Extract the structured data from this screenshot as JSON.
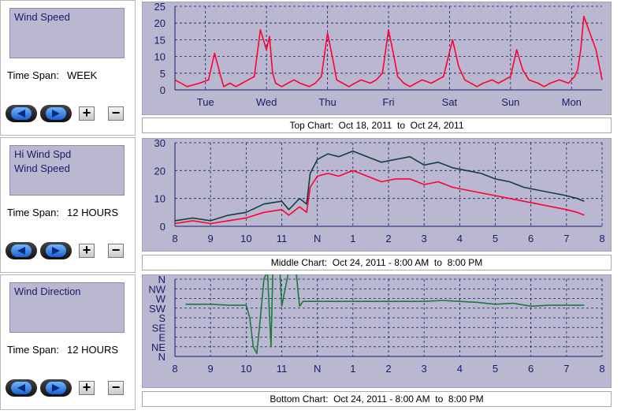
{
  "panels": [
    {
      "series_labels": [
        "Wind Speed"
      ],
      "time_span_label": "Time Span:",
      "time_span_value": "WEEK",
      "zoom_in": "+",
      "zoom_out": "−",
      "caption": "Top Chart:  Oct 18, 2011  to  Oct 24, 2011"
    },
    {
      "series_labels": [
        "Hi Wind Spd",
        "Wind Speed"
      ],
      "time_span_label": "Time Span:",
      "time_span_value": "12 HOURS",
      "zoom_in": "+",
      "zoom_out": "−",
      "caption": "Middle Chart:  Oct 24, 2011 - 8:00 AM  to  8:00 PM"
    },
    {
      "series_labels": [
        "Wind Direction"
      ],
      "time_span_label": "Time Span:",
      "time_span_value": "12 HOURS",
      "zoom_in": "+",
      "zoom_out": "−",
      "caption": "Bottom Chart:  Oct 24, 2011 - 8:00 AM  to  8:00 PM"
    }
  ],
  "colors": {
    "plot_bg": "#b9b8d0",
    "grid": "#1a1a66",
    "wind_speed": "#ff0033",
    "hi_wind": "#10403a",
    "direction": "#1e7a3a",
    "tick_text": "#1a1a66"
  },
  "chart_data": [
    {
      "type": "line",
      "ylim": [
        0,
        25
      ],
      "yticks": [
        0,
        5,
        10,
        15,
        20,
        25
      ],
      "x_tick_labels": [
        "Tue",
        "Wed",
        "Thu",
        "Fri",
        "Sat",
        "Sun",
        "Mon"
      ],
      "xlim": [
        0,
        7
      ],
      "series": [
        {
          "name": "Wind Speed",
          "x": [
            0,
            0.2,
            0.4,
            0.55,
            0.65,
            0.75,
            0.8,
            0.9,
            1.0,
            1.1,
            1.2,
            1.3,
            1.4,
            1.5,
            1.55,
            1.6,
            1.65,
            1.75,
            1.85,
            1.95,
            2.05,
            2.2,
            2.3,
            2.4,
            2.5,
            2.6,
            2.65,
            2.75,
            2.85,
            2.95,
            3.05,
            3.2,
            3.3,
            3.4,
            3.5,
            3.6,
            3.65,
            3.75,
            3.85,
            3.95,
            4.05,
            4.2,
            4.3,
            4.4,
            4.55,
            4.65,
            4.75,
            4.85,
            4.95,
            5.05,
            5.2,
            5.3,
            5.4,
            5.5,
            5.6,
            5.7,
            5.8,
            5.95,
            6.05,
            6.15,
            6.3,
            6.45,
            6.55,
            6.6,
            6.65,
            6.7,
            6.8,
            6.9,
            7.0
          ],
          "y": [
            3,
            1,
            2,
            3,
            11,
            4,
            1,
            2,
            1,
            2,
            3,
            4,
            18,
            12,
            16,
            5,
            2,
            1,
            2,
            3,
            2,
            1,
            2,
            4,
            17,
            8,
            3,
            2,
            1,
            2,
            3,
            2,
            3,
            5,
            18,
            9,
            4,
            2,
            1,
            2,
            3,
            2,
            3,
            4,
            15,
            7,
            3,
            2,
            1,
            2,
            3,
            2,
            3,
            4,
            12,
            6,
            3,
            2,
            1,
            2,
            3,
            2,
            4,
            6,
            12,
            22,
            17,
            12,
            3
          ]
        }
      ]
    },
    {
      "type": "line",
      "ylim": [
        0,
        30
      ],
      "yticks": [
        0,
        10,
        20,
        30
      ],
      "x_tick_labels": [
        "8",
        "9",
        "10",
        "11",
        "N",
        "1",
        "2",
        "3",
        "4",
        "5",
        "6",
        "7",
        "8"
      ],
      "xlim": [
        0,
        12
      ],
      "series": [
        {
          "name": "Hi Wind Spd",
          "x": [
            0,
            0.5,
            1,
            1.5,
            2,
            2.5,
            3,
            3.2,
            3.5,
            3.7,
            3.8,
            4,
            4.3,
            4.6,
            5,
            5.4,
            5.8,
            6.2,
            6.6,
            7,
            7.4,
            7.8,
            8.2,
            8.6,
            9,
            9.4,
            9.8,
            10.2,
            10.6,
            11,
            11.3,
            11.5
          ],
          "y": [
            2,
            3,
            2,
            4,
            5,
            8,
            9,
            6,
            10,
            8,
            19,
            24,
            26,
            25,
            27,
            25,
            23,
            24,
            25,
            22,
            23,
            21,
            20,
            19,
            17,
            16,
            14,
            13,
            12,
            11,
            10,
            9
          ]
        },
        {
          "name": "Wind Speed",
          "x": [
            0,
            0.5,
            1,
            1.5,
            2,
            2.5,
            3,
            3.2,
            3.5,
            3.7,
            3.8,
            4,
            4.3,
            4.6,
            5,
            5.4,
            5.8,
            6.2,
            6.6,
            7,
            7.4,
            7.8,
            8.2,
            8.6,
            9,
            9.4,
            9.8,
            10.2,
            10.6,
            11,
            11.3,
            11.5
          ],
          "y": [
            1,
            2,
            1,
            2,
            3,
            5,
            6,
            4,
            7,
            5,
            14,
            18,
            19,
            18,
            20,
            18,
            16,
            17,
            17,
            15,
            16,
            14,
            13,
            12,
            11,
            10,
            9,
            8,
            7,
            6,
            5,
            4
          ]
        }
      ]
    },
    {
      "type": "line",
      "y_categories": [
        "N",
        "NE",
        "E",
        "SE",
        "S",
        "SW",
        "W",
        "NW",
        "N"
      ],
      "x_tick_labels": [
        "8",
        "9",
        "10",
        "11",
        "N",
        "1",
        "2",
        "3",
        "4",
        "5",
        "6",
        "7",
        "8"
      ],
      "xlim": [
        0,
        12
      ],
      "series": [
        {
          "name": "Wind Direction",
          "x": [
            0.3,
            1,
            1.5,
            2,
            2.1,
            2.2,
            2.3,
            2.4,
            2.5,
            2.6,
            2.7,
            2.75,
            2.8,
            2.9,
            2.95,
            3.0,
            3.2,
            3.4,
            3.5,
            3.6,
            4,
            5,
            6,
            7,
            7.5,
            8,
            8.5,
            9,
            9.5,
            10,
            10.5,
            11,
            11.5
          ],
          "y": [
            5.4,
            5.4,
            5.3,
            5.3,
            4,
            1,
            0.3,
            4,
            8,
            8.8,
            1,
            8.9,
            8.9,
            8.9,
            8.9,
            5.2,
            8.9,
            8.9,
            5.2,
            5.7,
            5.7,
            5.7,
            5.7,
            5.7,
            5.8,
            5.7,
            5.6,
            5.4,
            5.5,
            5.2,
            5.3,
            5.3,
            5.3
          ]
        }
      ]
    }
  ]
}
